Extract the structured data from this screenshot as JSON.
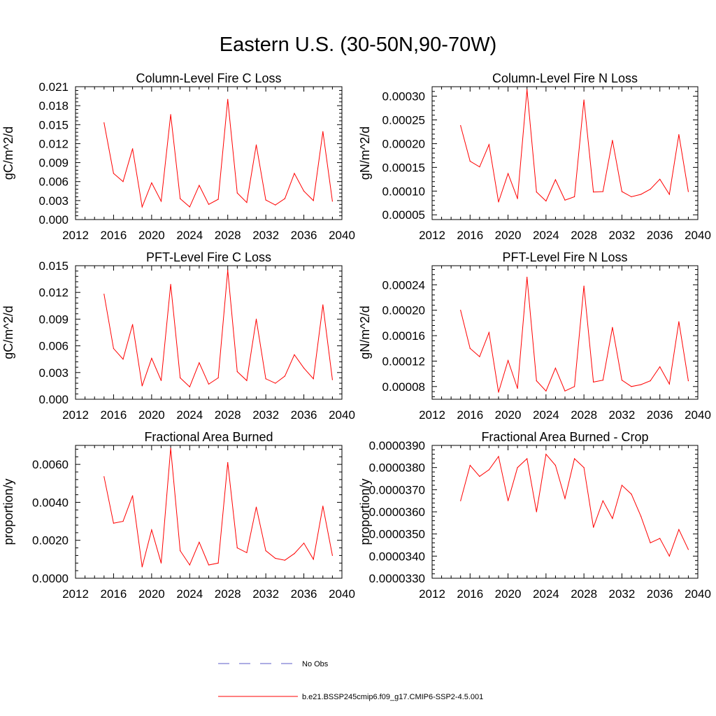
{
  "page_title": "Eastern U.S. (30-50N,90-70W)",
  "colors": {
    "series": "#ff0000",
    "obs": "#5b5bc8",
    "axis": "#000000"
  },
  "legend": [
    {
      "label": "No Obs",
      "style": "dashed",
      "color": "#5b5bc8"
    },
    {
      "label": "b.e21.BSSP245cmip6.f09_g17.CMIP6-SSP2-4.5.001",
      "style": "solid",
      "color": "#ff0000"
    }
  ],
  "chart_data": [
    {
      "type": "line",
      "title": "Column-Level Fire C Loss",
      "ylabel": "gC/m^2/d",
      "xlim": [
        2012,
        2040
      ],
      "ylim": [
        0,
        0.021
      ],
      "xticks": [
        "2012",
        "2016",
        "2020",
        "2024",
        "2028",
        "2032",
        "2036",
        "2040"
      ],
      "yticks": [
        "0.000",
        "0.003",
        "0.006",
        "0.009",
        "0.012",
        "0.015",
        "0.018",
        "0.021"
      ],
      "x": [
        2015,
        2016,
        2017,
        2018,
        2019,
        2020,
        2021,
        2022,
        2023,
        2024,
        2025,
        2026,
        2027,
        2028,
        2029,
        2030,
        2031,
        2032,
        2033,
        2034,
        2035,
        2036,
        2037,
        2038,
        2039
      ],
      "series": [
        {
          "values": [
            0.0153,
            0.0073,
            0.006,
            0.0112,
            0.002,
            0.0058,
            0.0029,
            0.0166,
            0.0033,
            0.002,
            0.0054,
            0.0024,
            0.0032,
            0.019,
            0.0042,
            0.0027,
            0.0118,
            0.0031,
            0.0023,
            0.0033,
            0.0073,
            0.0045,
            0.003,
            0.0139,
            0.0029
          ]
        }
      ]
    },
    {
      "type": "line",
      "title": "Column-Level Fire N Loss",
      "ylabel": "gN/m^2/d",
      "xlim": [
        2012,
        2040
      ],
      "ylim": [
        4e-05,
        0.00032
      ],
      "xticks": [
        "2012",
        "2016",
        "2020",
        "2024",
        "2028",
        "2032",
        "2036",
        "2040"
      ],
      "yticks": [
        "0.00005",
        "0.00010",
        "0.00015",
        "0.00020",
        "0.00025",
        "0.00030"
      ],
      "x": [
        2015,
        2016,
        2017,
        2018,
        2019,
        2020,
        2021,
        2022,
        2023,
        2024,
        2025,
        2026,
        2027,
        2028,
        2029,
        2030,
        2031,
        2032,
        2033,
        2034,
        2035,
        2036,
        2037,
        2038,
        2039
      ],
      "series": [
        {
          "values": [
            0.000238,
            0.000163,
            0.000151,
            0.000198,
            7.7e-05,
            0.000137,
            8.4e-05,
            0.000314,
            9.8e-05,
            7.9e-05,
            0.000124,
            8.1e-05,
            8.8e-05,
            0.000292,
            9.8e-05,
            9.9e-05,
            0.000207,
            9.9e-05,
            8.8e-05,
            9.3e-05,
            0.000104,
            0.000125,
            9.3e-05,
            0.000219,
            9.9e-05
          ]
        }
      ]
    },
    {
      "type": "line",
      "title": "PFT-Level Fire C Loss",
      "ylabel": "gC/m^2/d",
      "xlim": [
        2012,
        2040
      ],
      "ylim": [
        0,
        0.015
      ],
      "xticks": [
        "2012",
        "2016",
        "2020",
        "2024",
        "2028",
        "2032",
        "2036",
        "2040"
      ],
      "yticks": [
        "0.000",
        "0.003",
        "0.006",
        "0.009",
        "0.012",
        "0.015"
      ],
      "x": [
        2015,
        2016,
        2017,
        2018,
        2019,
        2020,
        2021,
        2022,
        2023,
        2024,
        2025,
        2026,
        2027,
        2028,
        2029,
        2030,
        2031,
        2032,
        2033,
        2034,
        2035,
        2036,
        2037,
        2038,
        2039
      ],
      "series": [
        {
          "values": [
            0.0118,
            0.0057,
            0.0045,
            0.0084,
            0.0015,
            0.0046,
            0.0021,
            0.0129,
            0.0024,
            0.0014,
            0.0041,
            0.0017,
            0.0024,
            0.0145,
            0.0031,
            0.0021,
            0.009,
            0.0023,
            0.0018,
            0.0026,
            0.005,
            0.0035,
            0.0023,
            0.0106,
            0.0022
          ]
        }
      ]
    },
    {
      "type": "line",
      "title": "PFT-Level Fire N Loss",
      "ylabel": "gN/m^2/d",
      "xlim": [
        2012,
        2040
      ],
      "ylim": [
        6e-05,
        0.00027
      ],
      "xticks": [
        "2012",
        "2016",
        "2020",
        "2024",
        "2028",
        "2032",
        "2036",
        "2040"
      ],
      "yticks": [
        "0.00008",
        "0.00012",
        "0.00016",
        "0.00020",
        "0.00024"
      ],
      "x": [
        2015,
        2016,
        2017,
        2018,
        2019,
        2020,
        2021,
        2022,
        2023,
        2024,
        2025,
        2026,
        2027,
        2028,
        2029,
        2030,
        2031,
        2032,
        2033,
        2034,
        2035,
        2036,
        2037,
        2038,
        2039
      ],
      "series": [
        {
          "values": [
            0.0002,
            0.00014,
            0.000127,
            0.000165,
            7.1e-05,
            0.000121,
            7.7e-05,
            0.000252,
            8.9e-05,
            7.3e-05,
            0.000109,
            7.3e-05,
            8e-05,
            0.000238,
            8.7e-05,
            9e-05,
            0.000173,
            9e-05,
            8e-05,
            8.3e-05,
            8.9e-05,
            0.000111,
            8.4e-05,
            0.000182,
            8.9e-05
          ]
        }
      ]
    },
    {
      "type": "line",
      "title": "Fractional Area Burned",
      "ylabel": "proportion/y",
      "xlim": [
        2012,
        2040
      ],
      "ylim": [
        0,
        0.007
      ],
      "xticks": [
        "2012",
        "2016",
        "2020",
        "2024",
        "2028",
        "2032",
        "2036",
        "2040"
      ],
      "yticks": [
        "0.0000",
        "0.0020",
        "0.0040",
        "0.0060"
      ],
      "x": [
        2015,
        2016,
        2017,
        2018,
        2019,
        2020,
        2021,
        2022,
        2023,
        2024,
        2025,
        2026,
        2027,
        2028,
        2029,
        2030,
        2031,
        2032,
        2033,
        2034,
        2035,
        2036,
        2037,
        2038,
        2039
      ],
      "series": [
        {
          "values": [
            0.00535,
            0.0029,
            0.003,
            0.00435,
            0.0006,
            0.00255,
            0.0008,
            0.00685,
            0.00145,
            0.0007,
            0.0019,
            0.0007,
            0.0008,
            0.0061,
            0.0016,
            0.00135,
            0.00375,
            0.00145,
            0.00105,
            0.00095,
            0.0013,
            0.00185,
            0.001,
            0.0038,
            0.0012
          ]
        }
      ]
    },
    {
      "type": "line",
      "title": "Fractional Area Burned - Crop",
      "ylabel": "proportion/y",
      "xlim": [
        2012,
        2040
      ],
      "ylim": [
        3.3e-05,
        3.9e-05
      ],
      "xticks": [
        "2012",
        "2016",
        "2020",
        "2024",
        "2028",
        "2032",
        "2036",
        "2040"
      ],
      "yticks": [
        "0.0000330",
        "0.0000340",
        "0.0000350",
        "0.0000360",
        "0.0000370",
        "0.0000380",
        "0.0000390"
      ],
      "x": [
        2015,
        2016,
        2017,
        2018,
        2019,
        2020,
        2021,
        2022,
        2023,
        2024,
        2025,
        2026,
        2027,
        2028,
        2029,
        2030,
        2031,
        2032,
        2033,
        2034,
        2035,
        2036,
        2037,
        2038,
        2039
      ],
      "series": [
        {
          "values": [
            3.65e-05,
            3.81e-05,
            3.76e-05,
            3.79e-05,
            3.85e-05,
            3.65e-05,
            3.8e-05,
            3.84e-05,
            3.6e-05,
            3.86e-05,
            3.81e-05,
            3.66e-05,
            3.84e-05,
            3.8e-05,
            3.53e-05,
            3.65e-05,
            3.57e-05,
            3.72e-05,
            3.68e-05,
            3.58e-05,
            3.46e-05,
            3.48e-05,
            3.4e-05,
            3.52e-05,
            3.43e-05
          ]
        }
      ]
    }
  ]
}
